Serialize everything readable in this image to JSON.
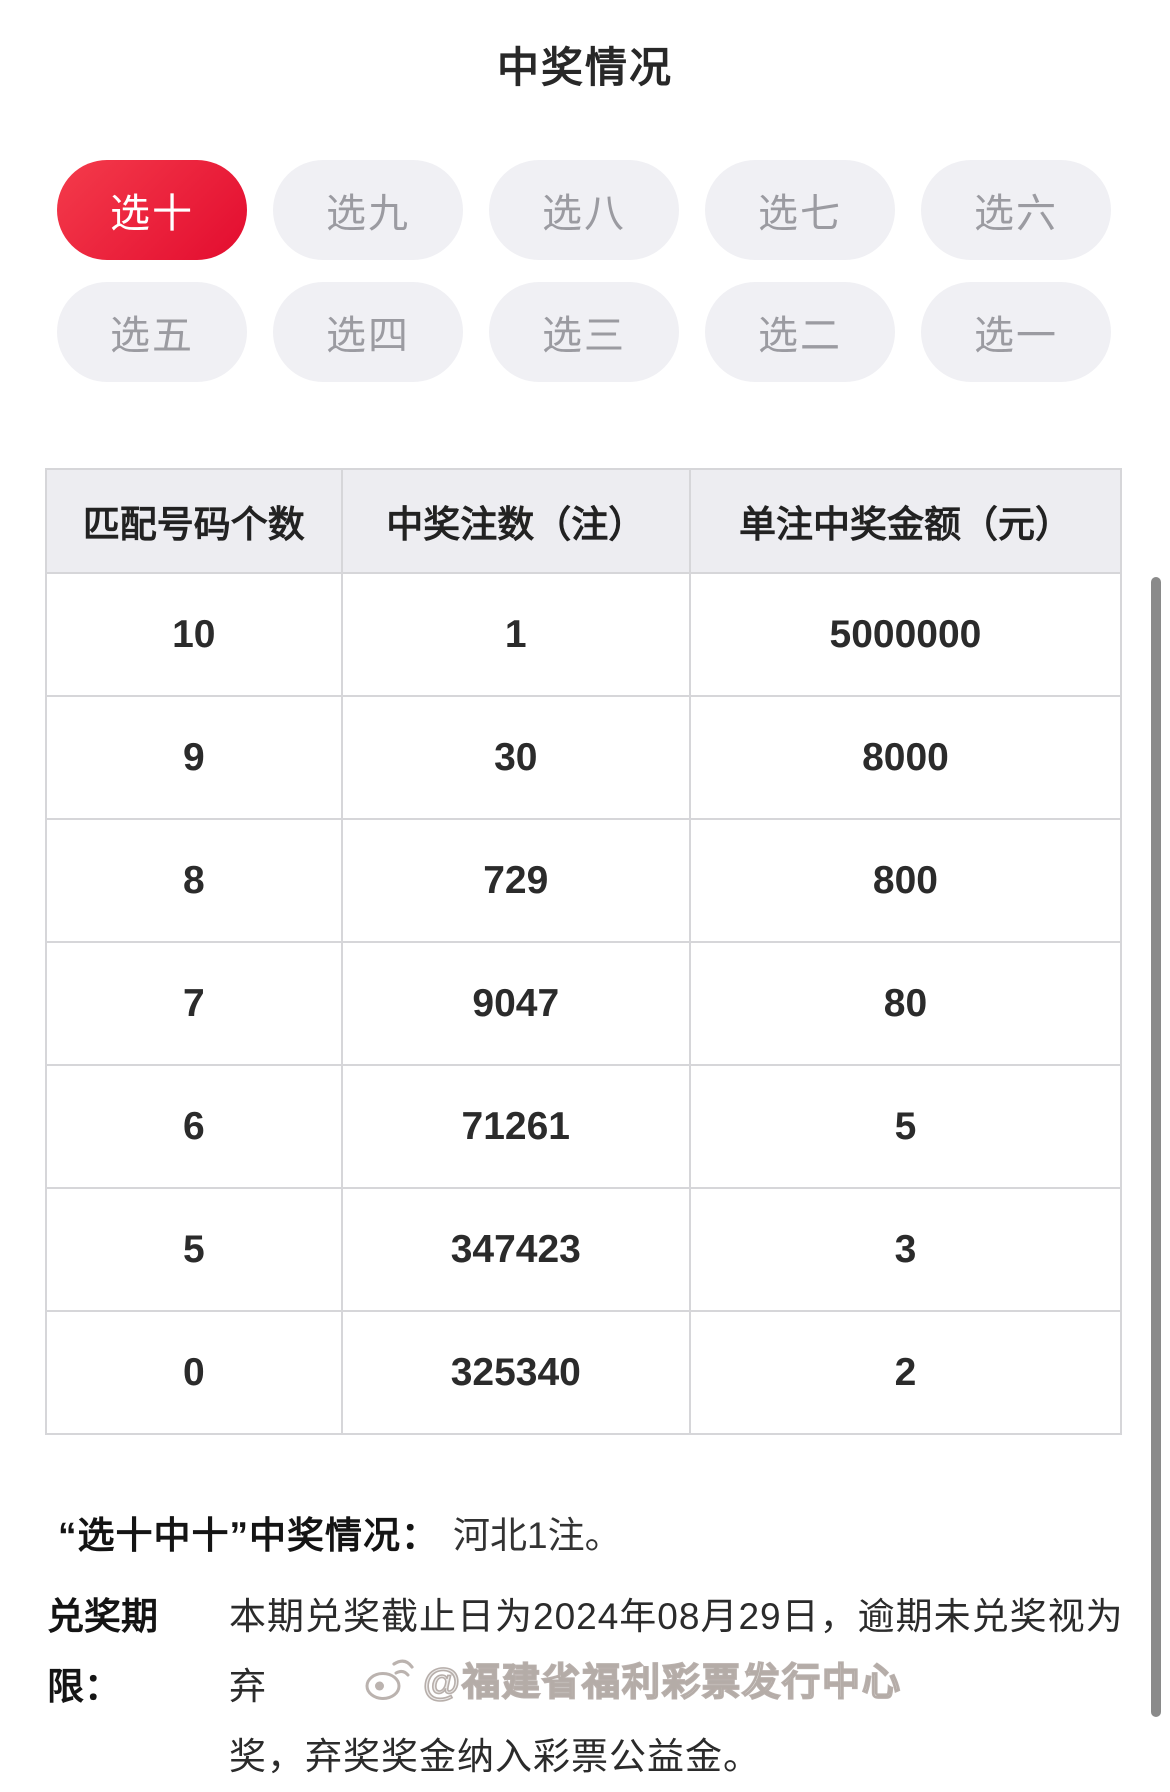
{
  "page": {
    "title": "中奖情况"
  },
  "tabs": [
    {
      "label": "选十",
      "active": true
    },
    {
      "label": "选九",
      "active": false
    },
    {
      "label": "选八",
      "active": false
    },
    {
      "label": "选七",
      "active": false
    },
    {
      "label": "选六",
      "active": false
    },
    {
      "label": "选五",
      "active": false
    },
    {
      "label": "选四",
      "active": false
    },
    {
      "label": "选三",
      "active": false
    },
    {
      "label": "选二",
      "active": false
    },
    {
      "label": "选一",
      "active": false
    }
  ],
  "table": {
    "headers": [
      "匹配号码个数",
      "中奖注数（注）",
      "单注中奖金额（元）"
    ],
    "rows": [
      [
        "10",
        "1",
        "5000000"
      ],
      [
        "9",
        "30",
        "8000"
      ],
      [
        "8",
        "729",
        "800"
      ],
      [
        "7",
        "9047",
        "80"
      ],
      [
        "6",
        "71261",
        "5"
      ],
      [
        "5",
        "347423",
        "3"
      ],
      [
        "0",
        "325340",
        "2"
      ]
    ]
  },
  "notes": {
    "note1_label": "“选十中十”中奖情况：",
    "note1_value": "河北1注。",
    "note2_label": "兑奖期限：",
    "note2_lines": [
      "本期兑奖截止日为2024年08月29日，逾期未兑奖视为弃",
      "奖，弃奖奖金纳入彩票公益金。"
    ]
  },
  "watermark": {
    "text": "@福建省福利彩票发行中心"
  },
  "colors": {
    "accent_from": "#f43b4b",
    "accent_to": "#e30c2f",
    "tab_inactive_bg": "#f0f0f4",
    "tab_inactive_text": "#9b9ba1",
    "table_header_bg": "#ededf1",
    "table_border": "#d6d6d9",
    "scrollbar": "#8a8a8a"
  }
}
